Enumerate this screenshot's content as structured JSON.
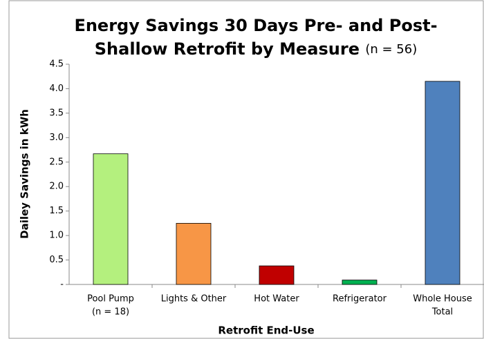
{
  "chart_data": {
    "type": "bar",
    "title": [
      "Energy Savings 30 Days Pre- and Post-",
      "Shallow Retrofit by Measure"
    ],
    "title_note": "(n = 56)",
    "x_label": "Retrofit End-Use",
    "y_label": "Dailey Savings in kWh",
    "categories": [
      [
        "Pool Pump",
        "(n = 18)"
      ],
      [
        "Lights & Other"
      ],
      [
        "Hot Water"
      ],
      [
        "Refrigerator"
      ],
      [
        "Whole House",
        "Total"
      ]
    ],
    "values": [
      2.67,
      1.25,
      0.38,
      0.09,
      4.15
    ],
    "colors": [
      "#b4f07e",
      "#f79646",
      "#c00000",
      "#00b050",
      "#4f81bd"
    ],
    "ylim": [
      0,
      4.5
    ],
    "yticks": [
      {
        "value": 0,
        "label": "-"
      },
      0.5,
      {
        "value": 1,
        "label": "1.0"
      },
      1.5,
      {
        "value": 2,
        "label": "2.0"
      },
      2.5,
      {
        "value": 3,
        "label": "3.0"
      },
      3.5,
      {
        "value": 4,
        "label": "4.0"
      },
      4.5
    ],
    "grid": false
  }
}
